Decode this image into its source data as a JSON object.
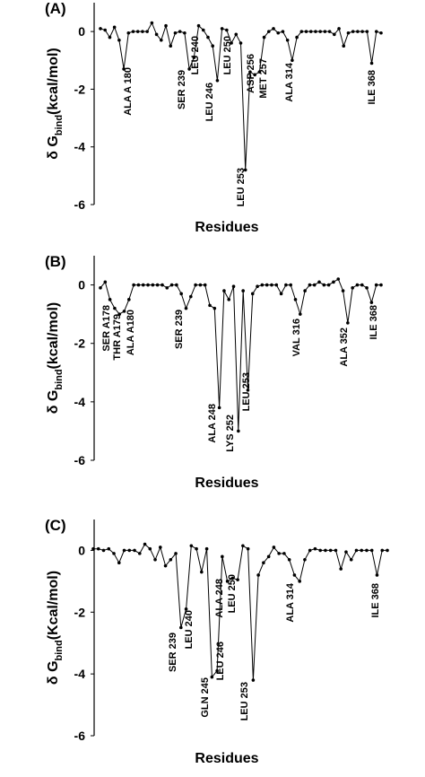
{
  "chart_data": [
    {
      "type": "line",
      "panel_label": "(A)",
      "ylabel": "δ G",
      "ylabel_sub": "bind",
      "ylabel_unit": "(kcal/mol)",
      "xlabel": "Residues",
      "color": "#000000",
      "ylim": [
        -6,
        1
      ],
      "yticks": [
        0,
        -2,
        -4,
        -6
      ],
      "values": [
        0.1,
        0.05,
        -0.2,
        0.15,
        -0.3,
        -1.3,
        -0.05,
        0,
        0,
        0,
        0,
        0.3,
        -0.1,
        -0.3,
        0.2,
        -0.5,
        -0.05,
        0,
        -0.05,
        -1.3,
        -0.9,
        0.2,
        0.05,
        -0.2,
        -0.5,
        -1.7,
        0.1,
        0.05,
        -0.4,
        -0.1,
        -0.4,
        -4.8,
        -1.4,
        -1.5,
        -1.4,
        -0.2,
        0,
        0.1,
        -0.05,
        0,
        -0.3,
        -1.0,
        -0.2,
        0,
        0,
        0,
        0,
        0,
        0,
        0,
        -0.1,
        0.1,
        -0.5,
        -0.05,
        0,
        0,
        0,
        0,
        -1.1,
        0,
        -0.05
      ],
      "annotations": [
        "ALA A 180",
        "SER 239",
        "LEU 240",
        "LEU 246",
        "LEU 250",
        "LEU 253",
        "ASP 256",
        "MET 257",
        "ALA 314",
        "ILE 368"
      ]
    },
    {
      "type": "line",
      "panel_label": "(B)",
      "ylabel": "δ G",
      "ylabel_sub": "bind",
      "ylabel_unit": "(kcal/mol)",
      "xlabel": "Residues",
      "color": "#000000",
      "ylim": [
        -6,
        1
      ],
      "yticks": [
        0,
        -2,
        -4,
        -6
      ],
      "values": [
        -0.1,
        0.1,
        -0.5,
        -0.8,
        -1.0,
        -0.9,
        -0.5,
        0,
        0,
        0,
        0,
        0,
        0,
        0,
        -0.1,
        0,
        0,
        -0.3,
        -0.8,
        -0.4,
        0,
        0,
        0,
        -0.7,
        -0.8,
        -4.2,
        -0.2,
        -0.5,
        -0.05,
        -5.0,
        -0.2,
        -3.6,
        -0.3,
        -0.05,
        0,
        0,
        0,
        0,
        -0.3,
        0,
        0,
        -0.5,
        -1.0,
        -0.2,
        0,
        0,
        0.1,
        0,
        0,
        0.1,
        0.2,
        -0.2,
        -1.3,
        -0.1,
        0,
        0,
        -0.1,
        -0.6,
        0,
        0
      ],
      "annotations": [
        "SER A178",
        "THR A179",
        "ALA A180",
        "SER 239",
        "ALA 248",
        "LYS 252",
        "LEU 253",
        "VAL 316",
        "ALA 352",
        "ILE 368"
      ]
    },
    {
      "type": "line",
      "panel_label": "(C)",
      "ylabel": "δ G",
      "ylabel_sub": "bind",
      "ylabel_unit": "(Kcal/mol)",
      "xlabel": "Residues",
      "color": "#000000",
      "ylim": [
        -6,
        1
      ],
      "yticks": [
        0,
        -2,
        -4,
        -6
      ],
      "values": [
        0.05,
        0.05,
        0,
        0.05,
        -0.1,
        -0.4,
        0,
        0,
        0,
        -0.1,
        0.2,
        0.05,
        -0.3,
        0.1,
        -0.5,
        -0.3,
        -0.1,
        -2.5,
        -1.9,
        0.15,
        0.05,
        -0.7,
        0.05,
        -4.1,
        -3.9,
        -0.2,
        -1.0,
        -0.9,
        -0.95,
        0.15,
        0.05,
        -4.2,
        -0.8,
        -0.4,
        -0.2,
        0.1,
        -0.1,
        -0.1,
        -0.3,
        -0.8,
        -1.0,
        -0.3,
        0,
        0.05,
        0,
        0,
        0,
        0,
        -0.6,
        -0.05,
        -0.3,
        0,
        0,
        0,
        0,
        -0.8,
        0,
        0
      ],
      "annotations": [
        "SER 239",
        "LEU 240",
        "GLN 245",
        "LEU 246",
        "ALA 248",
        "LEU 250",
        "LEU 253",
        "ALA 314",
        "ILE 368"
      ]
    }
  ]
}
